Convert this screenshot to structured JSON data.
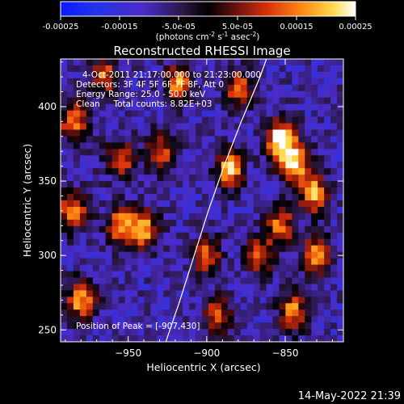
{
  "colorbar": {
    "tick_labels": [
      "-0.00025",
      "-0.00015",
      "-5.0e-05",
      "5.0e-05",
      "0.00015",
      "0.00025"
    ],
    "tick_values": [
      -0.00025,
      -0.00015,
      -5e-05,
      5e-05,
      0.00015,
      0.00025
    ],
    "range": [
      -0.00025,
      0.00025
    ],
    "unit_prefix": "(photons cm",
    "unit_exp1": "-2",
    "unit_mid": " s",
    "unit_exp2": "-1",
    "unit_mid2": " asec",
    "unit_exp3": "-2",
    "unit_suffix": ")"
  },
  "chart_data": {
    "type": "heatmap",
    "title": "Reconstructed RHESSI Image",
    "xlabel": "Heliocentric X (arcsec)",
    "ylabel": "Heliocentric Y (arcsec)",
    "xlim": [
      -993,
      -813
    ],
    "ylim": [
      242,
      432
    ],
    "x_ticks": [
      -950,
      -900,
      -850
    ],
    "x_tick_labels": [
      "−950",
      "−900",
      "−850"
    ],
    "y_ticks": [
      250,
      300,
      350,
      400
    ],
    "y_tick_labels": [
      "250",
      "300",
      "350",
      "400"
    ],
    "info_lines": [
      "4-Oct-2011 21:17:00.000 to 21:23:00.000",
      "Detectors: 3F 4F 5F 6F 7F 8F, Att 0",
      "Energy Range: 25.0 - 50.0 keV",
      "Clean     Total counts: 8.82E+03"
    ],
    "peak_label": "Position of Peak = [-907,430]",
    "peak_position": [
      -907,
      430
    ],
    "limb_curve": [
      [
        -926,
        242
      ],
      [
        -917,
        270
      ],
      [
        -908,
        300
      ],
      [
        -899,
        330
      ],
      [
        -889,
        360
      ],
      [
        -878,
        390
      ],
      [
        -866,
        420
      ],
      [
        -862,
        432
      ]
    ],
    "bright_sources": [
      {
        "x": -853,
        "y": 378,
        "level": 1.0
      },
      {
        "x": -844,
        "y": 362,
        "level": 0.85
      },
      {
        "x": -832,
        "y": 342,
        "level": 0.8
      },
      {
        "x": -885,
        "y": 358,
        "level": 0.8
      },
      {
        "x": -853,
        "y": 320,
        "level": 0.65
      },
      {
        "x": -940,
        "y": 318,
        "level": 0.75
      },
      {
        "x": -955,
        "y": 320,
        "level": 0.7
      },
      {
        "x": -900,
        "y": 300,
        "level": 0.6
      },
      {
        "x": -985,
        "y": 390,
        "level": 0.7
      },
      {
        "x": -985,
        "y": 330,
        "level": 0.7
      },
      {
        "x": -980,
        "y": 270,
        "level": 0.75
      },
      {
        "x": -955,
        "y": 365,
        "level": 0.6
      },
      {
        "x": -930,
        "y": 370,
        "level": 0.6
      },
      {
        "x": -918,
        "y": 415,
        "level": 0.7
      },
      {
        "x": -880,
        "y": 412,
        "level": 0.65
      },
      {
        "x": -830,
        "y": 300,
        "level": 0.7
      },
      {
        "x": -845,
        "y": 262,
        "level": 0.7
      },
      {
        "x": -893,
        "y": 260,
        "level": 0.55
      },
      {
        "x": -965,
        "y": 420,
        "level": 0.6
      },
      {
        "x": -866,
        "y": 300,
        "level": 0.6
      }
    ]
  },
  "footer": {
    "timestamp": "14-May-2022 21:39"
  }
}
